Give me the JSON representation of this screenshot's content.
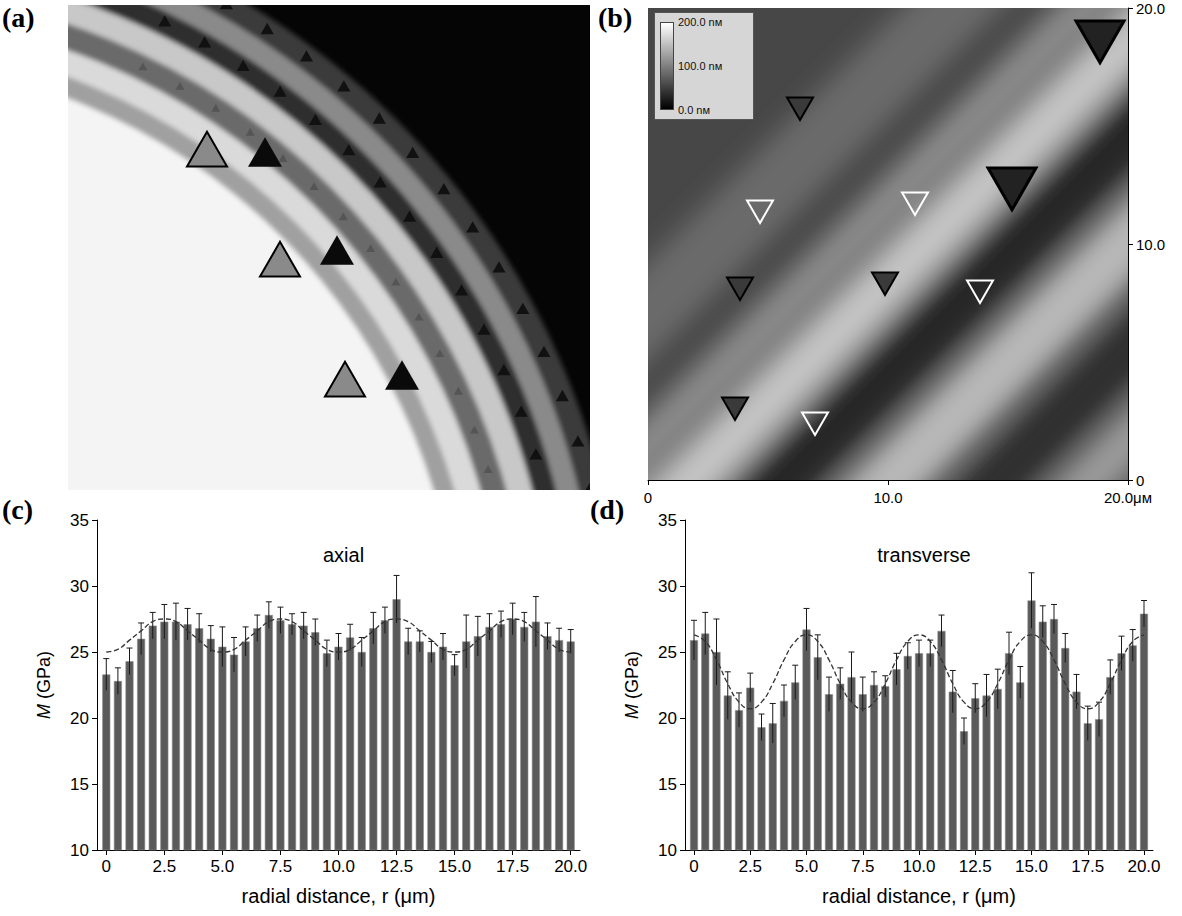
{
  "images": [
    {
      "label": "(a)"
    },
    {
      "label": "(b)",
      "xlim": [
        0,
        20
      ],
      "xticks": [
        0,
        {
          "value": 10,
          "label": "10.0"
        },
        {
          "value": 20,
          "label": "20.0μм"
        }
      ],
      "ylim": [
        0,
        20
      ],
      "yticks": [
        0,
        {
          "value": 10,
          "label": "10.0"
        },
        {
          "value": 20,
          "label": "20.0"
        }
      ],
      "colorbar": {
        "range": [
          0,
          200
        ],
        "ticks": [
          {
            "value": 0,
            "label": "0.0 nм"
          },
          {
            "value": 100,
            "label": "100.0 nм"
          },
          {
            "value": 200,
            "label": "200.0 nм"
          }
        ]
      }
    }
  ],
  "chart_data": [
    {
      "label": "(c)",
      "type": "bar",
      "title": "axial",
      "xlabel": "radial distance, r (μm)",
      "ylabel": "M (GPa)",
      "color": "#5a5a5a",
      "x": [
        0,
        0.5,
        1,
        1.5,
        2,
        2.5,
        3,
        3.5,
        4,
        4.5,
        5,
        5.5,
        6,
        6.5,
        7,
        7.5,
        8,
        8.5,
        9,
        9.5,
        10,
        10.5,
        11,
        11.5,
        12,
        12.5,
        13,
        13.5,
        14,
        14.5,
        15,
        15.5,
        16,
        16.5,
        17,
        17.5,
        18,
        18.5,
        19,
        19.5,
        20
      ],
      "values": [
        23.3,
        22.8,
        24.3,
        26,
        27,
        27.3,
        27.3,
        27.1,
        26.8,
        26,
        25.4,
        24.8,
        25.8,
        26.8,
        27.8,
        27.4,
        27.1,
        27,
        26.5,
        24.9,
        25.4,
        26.1,
        25,
        26.8,
        27.4,
        29,
        25.8,
        25.8,
        25,
        25.4,
        24,
        25.8,
        26.2,
        26.9,
        27.1,
        27.5,
        26.9,
        27.3,
        26.2,
        25.9,
        25.8
      ],
      "errors": [
        1.2,
        1.0,
        1.0,
        1.2,
        1.0,
        1.3,
        1.4,
        1.2,
        1.1,
        1.0,
        1.5,
        1.3,
        1.1,
        1.0,
        1.0,
        1.0,
        0.8,
        1.0,
        1.0,
        1.0,
        1.0,
        1.0,
        1.1,
        1.2,
        1.0,
        1.8,
        1.0,
        0.8,
        0.8,
        1.0,
        0.8,
        2.0,
        1.5,
        1.0,
        1.0,
        1.2,
        1.1,
        1.9,
        1.0,
        0.9,
        0.9
      ],
      "fit": {
        "type": "line",
        "line_style": "dashed",
        "values": [
          25.0,
          25.2,
          25.9,
          26.6,
          27.3,
          27.5,
          27.3,
          26.6,
          25.9,
          25.2,
          25.0,
          25.2,
          25.9,
          26.6,
          27.3,
          27.5,
          27.3,
          26.6,
          25.9,
          25.2,
          25.0,
          25.2,
          25.9,
          26.6,
          27.3,
          27.5,
          27.3,
          26.6,
          25.9,
          25.2,
          25.0,
          25.2,
          25.9,
          26.6,
          27.3,
          27.5,
          27.3,
          26.6,
          25.9,
          25.2,
          25.0
        ]
      },
      "xlim": [
        -0.4,
        20.4
      ],
      "xticks": [
        0,
        2.5,
        {
          "value": 5,
          "label": "5.0"
        },
        7.5,
        {
          "value": 10,
          "label": "10.0"
        },
        12.5,
        {
          "value": 15,
          "label": "15.0"
        },
        17.5,
        {
          "value": 20,
          "label": "20.0"
        }
      ],
      "ylim": [
        10,
        35
      ],
      "yticks": [
        10,
        15,
        20,
        25,
        30,
        35
      ]
    },
    {
      "label": "(d)",
      "type": "bar",
      "title": "transverse",
      "xlabel": "radial distance, r (μm)",
      "ylabel": "M (GPa)",
      "color": "#5a5a5a",
      "x": [
        0,
        0.5,
        1,
        1.5,
        2,
        2.5,
        3,
        3.5,
        4,
        4.5,
        5,
        5.5,
        6,
        6.5,
        7,
        7.5,
        8,
        8.5,
        9,
        9.5,
        10,
        10.5,
        11,
        11.5,
        12,
        12.5,
        13,
        13.5,
        14,
        14.5,
        15,
        15.5,
        16,
        16.5,
        17,
        17.5,
        18,
        18.5,
        19,
        19.5,
        20
      ],
      "values": [
        25.9,
        26.4,
        25,
        21.7,
        20.6,
        22.3,
        19.3,
        19.6,
        21.3,
        22.7,
        26.7,
        24.6,
        21.8,
        22.6,
        23.1,
        21.8,
        22.5,
        22.4,
        23.7,
        24.7,
        24.9,
        24.9,
        26.6,
        22,
        19,
        21.5,
        21.7,
        22.2,
        24.9,
        22.7,
        28.9,
        27.3,
        27.5,
        25.3,
        22,
        19.6,
        19.9,
        23.1,
        24.9,
        25.5,
        27.9
      ],
      "errors": [
        1.5,
        1.6,
        2.5,
        1.8,
        1.3,
        1.1,
        1.0,
        1.5,
        1.2,
        1.3,
        1.6,
        1.7,
        1.3,
        1.2,
        1.9,
        1.3,
        1.0,
        0.8,
        1.2,
        1.0,
        1.0,
        1.0,
        1.2,
        1.6,
        1.0,
        1.1,
        1.6,
        1.5,
        1.6,
        1.2,
        2.1,
        1.2,
        1.1,
        1.1,
        1.3,
        1.3,
        1.3,
        1.3,
        1.3,
        1.2,
        1.0
      ],
      "fit": {
        "type": "line",
        "line_style": "dashed",
        "values": [
          26.3,
          25.8,
          24.4,
          22.6,
          21.2,
          20.7,
          21.2,
          22.6,
          24.4,
          25.8,
          26.3,
          25.8,
          24.4,
          22.6,
          21.2,
          20.7,
          21.2,
          22.6,
          24.4,
          25.8,
          26.3,
          25.8,
          24.4,
          22.6,
          21.2,
          20.7,
          21.2,
          22.6,
          24.4,
          25.8,
          26.3,
          25.8,
          24.4,
          22.6,
          21.2,
          20.7,
          21.2,
          22.6,
          24.4,
          25.8,
          26.3
        ]
      },
      "xlim": [
        -0.4,
        20.4
      ],
      "xticks": [
        0,
        2.5,
        {
          "value": 5,
          "label": "5.0"
        },
        7.5,
        {
          "value": 10,
          "label": "10.0"
        },
        12.5,
        {
          "value": 15,
          "label": "15.0"
        },
        17.5,
        {
          "value": 20,
          "label": "20.0"
        }
      ],
      "ylim": [
        10,
        35
      ],
      "yticks": [
        10,
        15,
        20,
        25,
        30,
        35
      ]
    }
  ]
}
